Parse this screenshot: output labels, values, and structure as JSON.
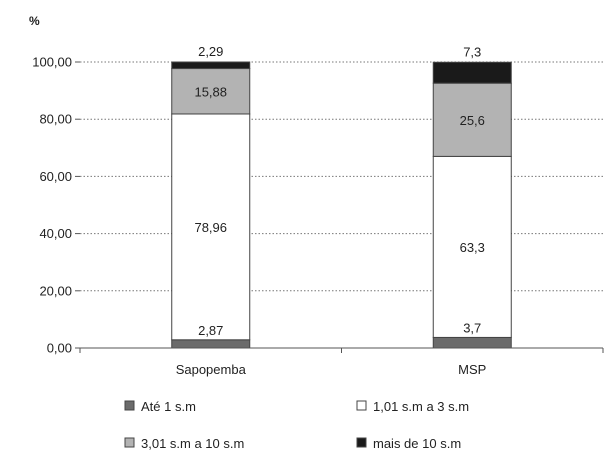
{
  "chart_data": {
    "type": "bar",
    "stacked": true,
    "y_unit_label": "%",
    "categories": [
      "Sapopemba",
      "MSP"
    ],
    "series": [
      {
        "name": "Até 1 s.m",
        "values": [
          2.87,
          3.7
        ],
        "labels": [
          "2,87",
          "3,7"
        ],
        "color": "#6b6b6b"
      },
      {
        "name": "1,01 s.m a 3 s.m",
        "values": [
          78.96,
          63.3
        ],
        "labels": [
          "78,96",
          "63,3"
        ],
        "color": "#ffffff"
      },
      {
        "name": "3,01 s.m a 10 s.m",
        "values": [
          15.88,
          25.6
        ],
        "labels": [
          "15,88",
          "25,6"
        ],
        "color": "#b3b3b3"
      },
      {
        "name": "mais de 10 s.m",
        "values": [
          2.29,
          7.3
        ],
        "labels": [
          "2,29",
          "7,3"
        ],
        "color": "#1a1a1a"
      }
    ],
    "ylim": [
      0,
      100
    ],
    "yticks": [
      "0,00",
      "20,00",
      "40,00",
      "60,00",
      "80,00",
      "100,00"
    ],
    "grid": "horizontal dotted",
    "legend_position": "bottom"
  }
}
